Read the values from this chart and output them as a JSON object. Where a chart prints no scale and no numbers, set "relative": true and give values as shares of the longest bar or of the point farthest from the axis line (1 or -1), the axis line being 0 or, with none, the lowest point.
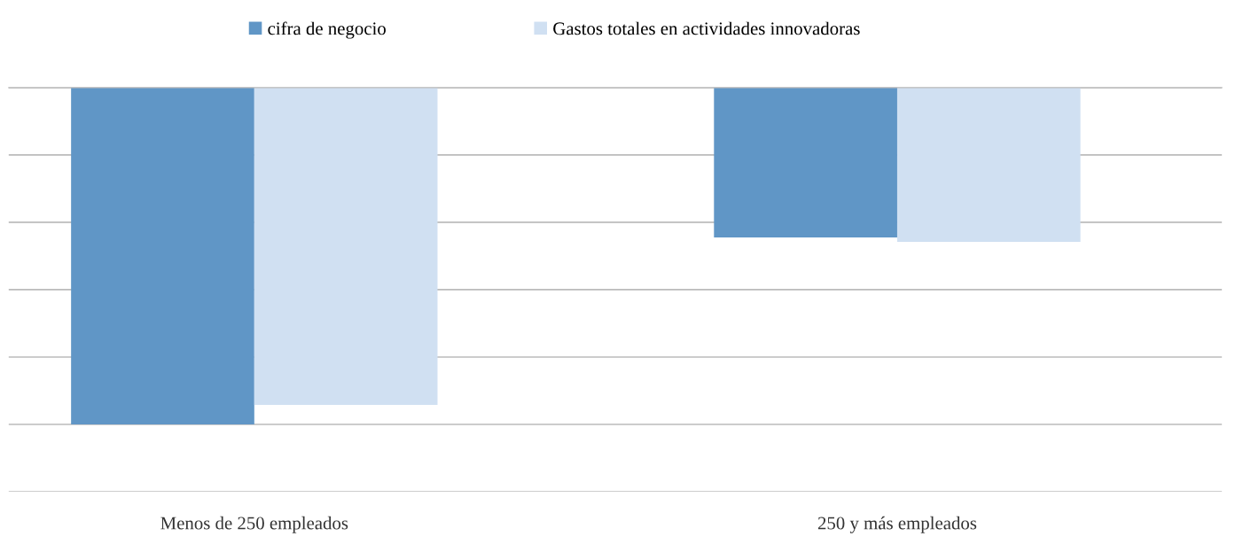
{
  "chart_data": {
    "type": "bar",
    "relative": true,
    "categories": [
      "Menos de 250 empleados",
      "250 y más empleados"
    ],
    "series": [
      {
        "name": "cifra de negocio",
        "color": "#6096c6",
        "values": [
          -1,
          -0.445
        ]
      },
      {
        "name": "Gastos totales en actividades innovadoras",
        "color": "#d0e0f2",
        "values": [
          -0.942,
          -0.458
        ]
      }
    ],
    "grid": "y",
    "legend": "top"
  }
}
